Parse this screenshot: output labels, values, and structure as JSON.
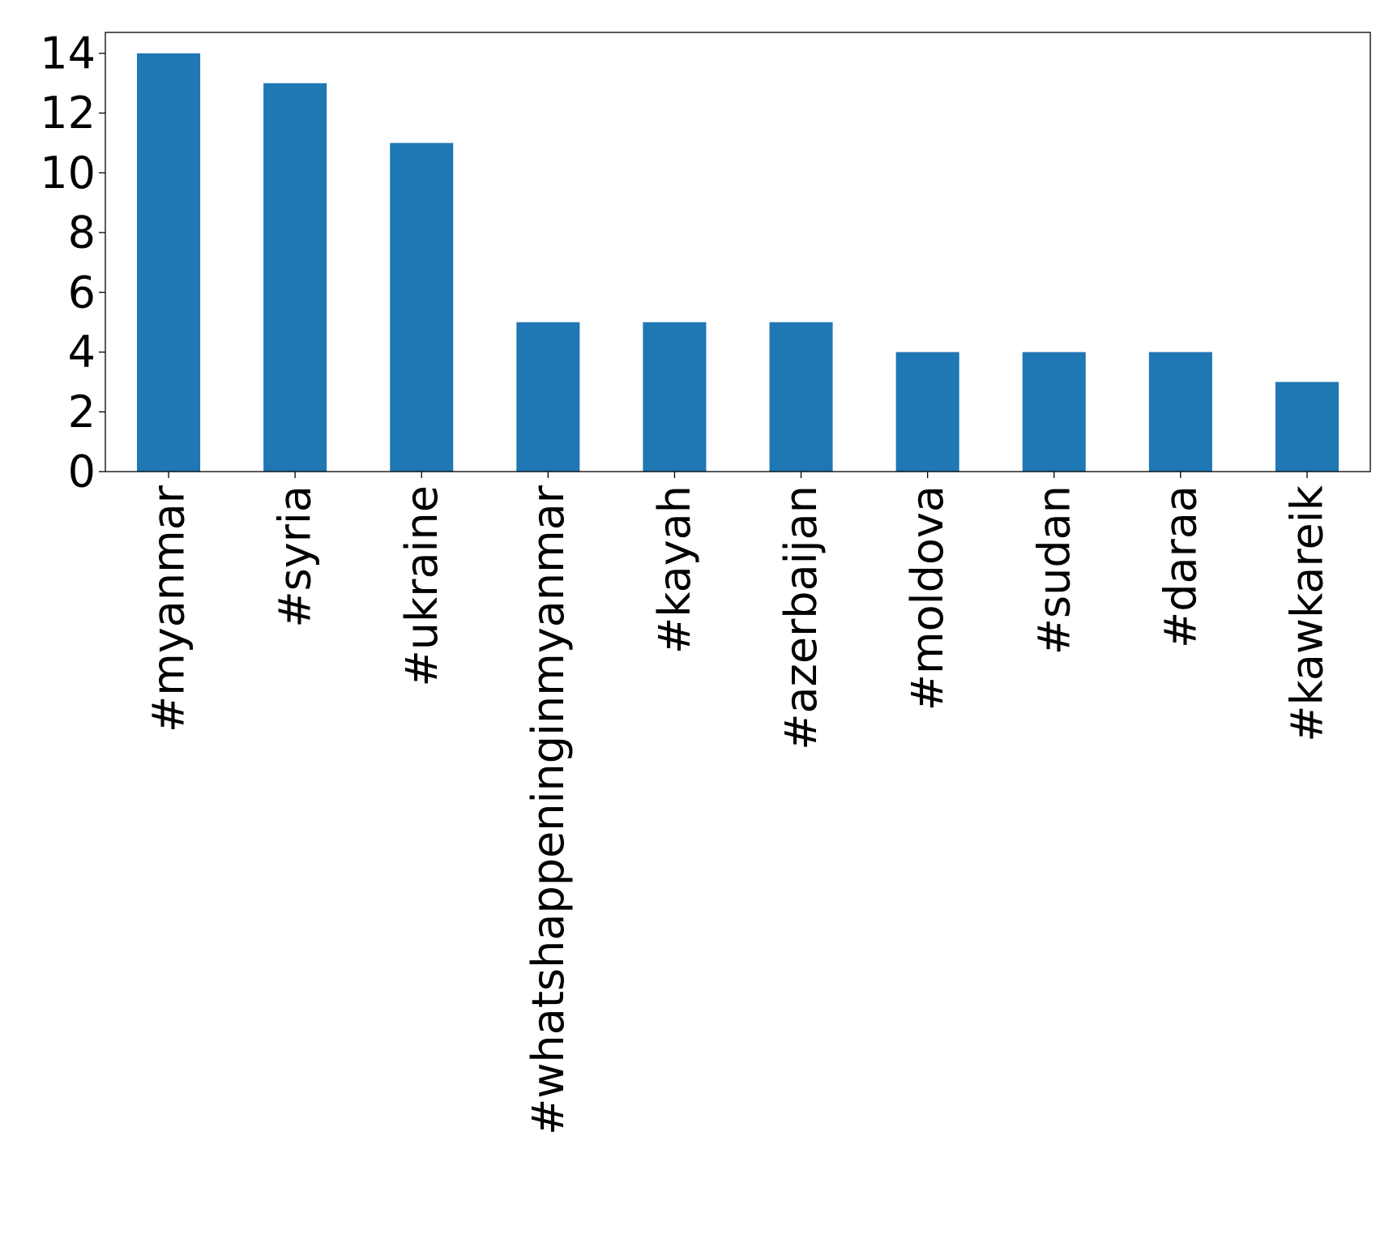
{
  "chart_data": {
    "type": "bar",
    "title": "",
    "xlabel": "",
    "ylabel": "",
    "categories": [
      "#myanmar",
      "#syria",
      "#ukraine",
      "#whatshappeninginmyanmar",
      "#kayah",
      "#azerbaijan",
      "#moldova",
      "#sudan",
      "#daraa",
      "#kawkareik"
    ],
    "values": [
      14,
      13,
      11,
      5,
      5,
      5,
      4,
      4,
      4,
      3
    ],
    "ylim": [
      0,
      14.7
    ],
    "yticks": [
      0,
      2,
      4,
      6,
      8,
      10,
      12,
      14
    ],
    "grid": false,
    "legend": "none",
    "colors": {
      "bar": "#1f77b4",
      "axis": "#000000",
      "text": "#000000",
      "background": "#ffffff"
    }
  }
}
